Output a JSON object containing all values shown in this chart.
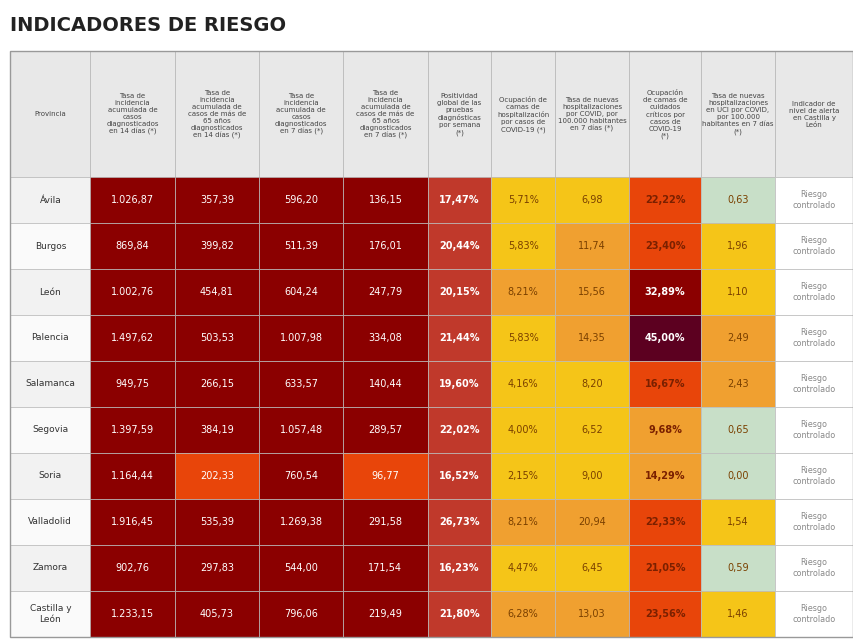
{
  "title": "INDICADORES DE RIESGO",
  "col_headers": [
    "Provincia",
    "Tasa de\nincidencia\nacumulada de\ncasos\ndiagnosticados\nen 14 días (*)",
    "Tasa de\nincidencia\nacumulada de\ncasos de más de\n65 años\ndiagnosticados\nen 14 días (*)",
    "Tasa de\nincidencia\nacumulada de\ncasos\ndiagnosticados\nen 7 días (*)",
    "Tasa de\nincidencia\nacumulada de\ncasos de más de\n65 años\ndiagnosticados\nen 7 días (*)",
    "Positividad\nglobal de las\npruebas\ndiagnósticas\npor semana\n(*)",
    "Ocupación de\ncamas de\nhospitalización\npor casos de\nCOVID-19 (*)",
    "Tasa de nuevas\nhospitalizaciones\npor COVID, por\n100.000 habitantes\nen 7 días (*)",
    "Ocupación\nde camas de\ncuidados\ncríticos por\ncasos de\nCOVID-19\n(*)",
    "Tasa de nuevas\nhospitalizaciones\nen UCI por COVID,\npor 100.000\nhabitantes en 7 días\n(*)",
    "Indicador de\nnivel de alerta\nen Castilla y\nLeón"
  ],
  "rows": [
    {
      "provincia": "Ávila",
      "v1": "1.026,87",
      "v2": "357,39",
      "v3": "596,20",
      "v4": "136,15",
      "v5": "17,47%",
      "v6": "5,71%",
      "v7": "6,98",
      "v8": "22,22%",
      "v9": "0,63",
      "v10": "Riesgo\ncontrolado"
    },
    {
      "provincia": "Burgos",
      "v1": "869,84",
      "v2": "399,82",
      "v3": "511,39",
      "v4": "176,01",
      "v5": "20,44%",
      "v6": "5,83%",
      "v7": "11,74",
      "v8": "23,40%",
      "v9": "1,96",
      "v10": "Riesgo\ncontrolado"
    },
    {
      "provincia": "León",
      "v1": "1.002,76",
      "v2": "454,81",
      "v3": "604,24",
      "v4": "247,79",
      "v5": "20,15%",
      "v6": "8,21%",
      "v7": "15,56",
      "v8": "32,89%",
      "v9": "1,10",
      "v10": "Riesgo\ncontrolado"
    },
    {
      "provincia": "Palencia",
      "v1": "1.497,62",
      "v2": "503,53",
      "v3": "1.007,98",
      "v4": "334,08",
      "v5": "21,44%",
      "v6": "5,83%",
      "v7": "14,35",
      "v8": "45,00%",
      "v9": "2,49",
      "v10": "Riesgo\ncontrolado"
    },
    {
      "provincia": "Salamanca",
      "v1": "949,75",
      "v2": "266,15",
      "v3": "633,57",
      "v4": "140,44",
      "v5": "19,60%",
      "v6": "4,16%",
      "v7": "8,20",
      "v8": "16,67%",
      "v9": "2,43",
      "v10": "Riesgo\ncontrolado"
    },
    {
      "provincia": "Segovia",
      "v1": "1.397,59",
      "v2": "384,19",
      "v3": "1.057,48",
      "v4": "289,57",
      "v5": "22,02%",
      "v6": "4,00%",
      "v7": "6,52",
      "v8": "9,68%",
      "v9": "0,65",
      "v10": "Riesgo\ncontrolado"
    },
    {
      "provincia": "Soria",
      "v1": "1.164,44",
      "v2": "202,33",
      "v3": "760,54",
      "v4": "96,77",
      "v5": "16,52%",
      "v6": "2,15%",
      "v7": "9,00",
      "v8": "14,29%",
      "v9": "0,00",
      "v10": "Riesgo\ncontrolado"
    },
    {
      "provincia": "Valladolid",
      "v1": "1.916,45",
      "v2": "535,39",
      "v3": "1.269,38",
      "v4": "291,58",
      "v5": "26,73%",
      "v6": "8,21%",
      "v7": "20,94",
      "v8": "22,33%",
      "v9": "1,54",
      "v10": "Riesgo\ncontrolado"
    },
    {
      "provincia": "Zamora",
      "v1": "902,76",
      "v2": "297,83",
      "v3": "544,00",
      "v4": "171,54",
      "v5": "16,23%",
      "v6": "4,47%",
      "v7": "6,45",
      "v8": "21,05%",
      "v9": "0,59",
      "v10": "Riesgo\ncontrolado"
    },
    {
      "provincia": "Castilla y\nLeón",
      "v1": "1.233,15",
      "v2": "405,73",
      "v3": "796,06",
      "v4": "219,49",
      "v5": "21,80%",
      "v6": "6,28%",
      "v7": "13,03",
      "v8": "23,56%",
      "v9": "1,46",
      "v10": "Riesgo\ncontrolado"
    }
  ],
  "cell_colors": {
    "v1": [
      "#8B0000",
      "#8B0000",
      "#8B0000",
      "#8B0000",
      "#8B0000",
      "#8B0000",
      "#8B0000",
      "#8B0000",
      "#8B0000",
      "#8B0000"
    ],
    "v2": [
      "#8B0000",
      "#8B0000",
      "#8B0000",
      "#8B0000",
      "#8B0000",
      "#8B0000",
      "#E8450A",
      "#8B0000",
      "#8B0000",
      "#8B0000"
    ],
    "v3": [
      "#8B0000",
      "#8B0000",
      "#8B0000",
      "#8B0000",
      "#8B0000",
      "#8B0000",
      "#8B0000",
      "#8B0000",
      "#8B0000",
      "#8B0000"
    ],
    "v4": [
      "#8B0000",
      "#8B0000",
      "#8B0000",
      "#8B0000",
      "#8B0000",
      "#8B0000",
      "#E8450A",
      "#8B0000",
      "#8B0000",
      "#8B0000"
    ],
    "v5": [
      "#C0392B",
      "#C0392B",
      "#C0392B",
      "#C0392B",
      "#C0392B",
      "#C0392B",
      "#C0392B",
      "#C0392B",
      "#C0392B",
      "#C0392B"
    ],
    "v6": [
      "#F5C518",
      "#F5C518",
      "#F0A030",
      "#F5C518",
      "#F5C518",
      "#F5C518",
      "#F5C518",
      "#F0A030",
      "#F5C518",
      "#F0A030"
    ],
    "v7": [
      "#F5C518",
      "#F0A030",
      "#F0A030",
      "#F0A030",
      "#F5C518",
      "#F5C518",
      "#F5C518",
      "#F0A030",
      "#F5C518",
      "#F0A030"
    ],
    "v8": [
      "#E8450A",
      "#E8450A",
      "#8B0000",
      "#5C0020",
      "#E8450A",
      "#F0A030",
      "#F0A030",
      "#E8450A",
      "#E8450A",
      "#E8450A"
    ],
    "v9": [
      "#C8DFC8",
      "#F5C518",
      "#F5C518",
      "#F0A030",
      "#F0A030",
      "#C8DFC8",
      "#C8DFC8",
      "#F5C518",
      "#C8DFC8",
      "#F5C518"
    ],
    "v10": [
      "#FFFFFF",
      "#FFFFFF",
      "#FFFFFF",
      "#FFFFFF",
      "#FFFFFF",
      "#FFFFFF",
      "#FFFFFF",
      "#FFFFFF",
      "#FFFFFF",
      "#FFFFFF"
    ]
  },
  "bg_color": "#FFFFFF",
  "header_bg": "#E8E8E8",
  "border_color": "#BBBBBB",
  "title_color": "#222222",
  "title_fontsize": 14,
  "header_fontsize": 5.0,
  "data_fontsize": 7.0,
  "provincia_fontsize": 6.5
}
